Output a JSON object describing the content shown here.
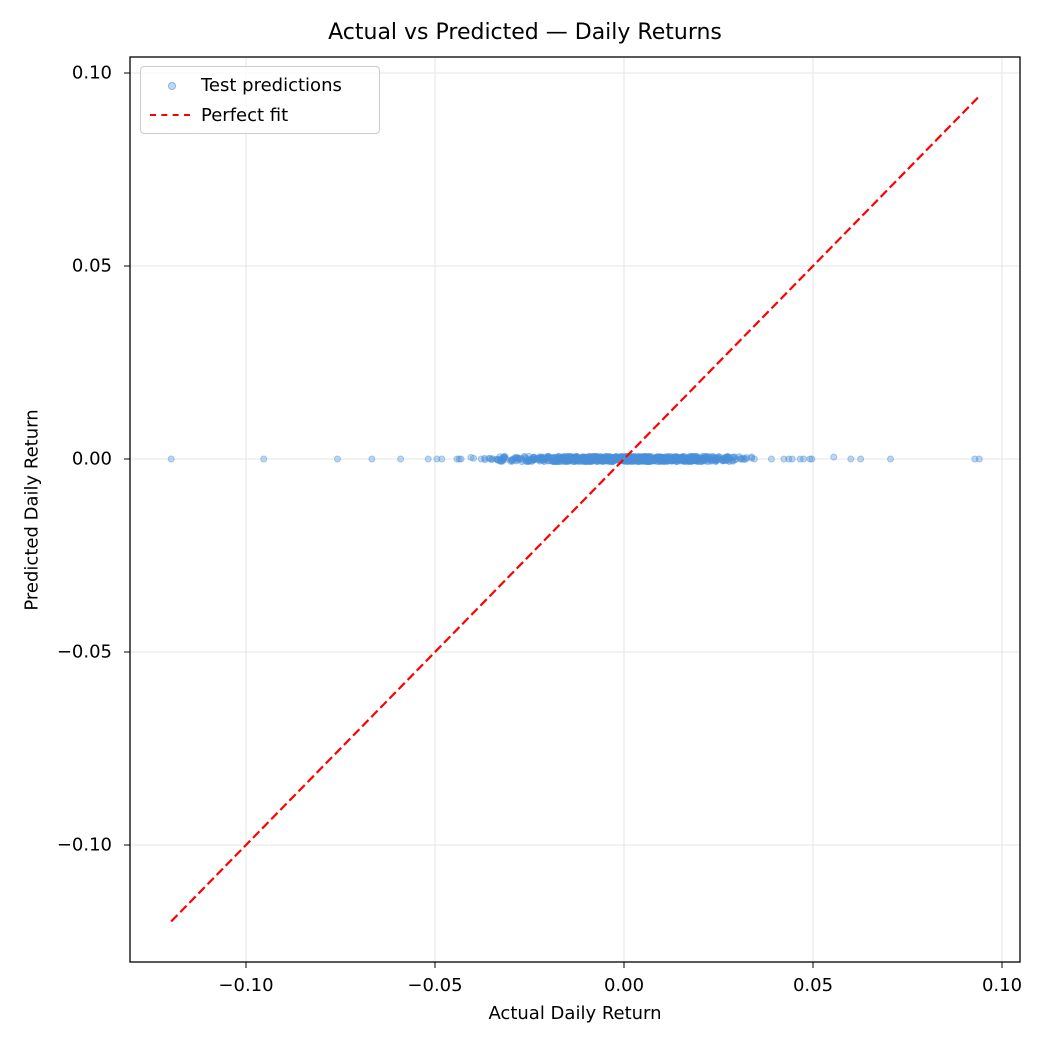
{
  "chart_data": {
    "type": "scatter",
    "title": "Actual vs Predicted — Daily Returns",
    "xlabel": "Actual Daily Return",
    "ylabel": "Predicted Daily Return",
    "xlim": [
      -0.131,
      0.104
    ],
    "ylim": [
      -0.131,
      0.104
    ],
    "xticks": [
      -0.1,
      -0.05,
      0.0,
      0.05,
      0.1
    ],
    "xtick_labels": [
      "−0.10",
      "−0.05",
      "0.00",
      "0.05",
      "0.10"
    ],
    "yticks": [
      -0.1,
      -0.05,
      0.0,
      0.05,
      0.1
    ],
    "ytick_labels": [
      "−0.10",
      "−0.05",
      "0.00",
      "0.05",
      "0.10"
    ],
    "grid": true,
    "legend_position": "upper left",
    "series": [
      {
        "name": "Test predictions",
        "kind": "scatter",
        "color": "#4a90d9",
        "alpha": 0.35,
        "outlier_x": [
          -0.1198,
          -0.0953,
          -0.0758,
          -0.0667,
          -0.0591,
          -0.0518,
          -0.0495,
          -0.0482,
          -0.0442,
          -0.0436,
          -0.0431,
          -0.0405,
          -0.0398,
          -0.0378,
          0.0345,
          0.039,
          0.0423,
          0.0436,
          0.0445,
          0.0466,
          0.0475,
          0.0492,
          0.0497,
          0.0555,
          0.06,
          0.0626,
          0.0705,
          0.0928,
          0.094
        ],
        "outlier_y": [
          0.0,
          0.0,
          0.0,
          0.0,
          0.0,
          0.0,
          0.0,
          0.0,
          0.0,
          0.0,
          0.0,
          0.0004,
          0.0002,
          0.0,
          0.0,
          0.0,
          0.0,
          0.0,
          0.0,
          0.0,
          0.0,
          0.0,
          0.0,
          0.0005,
          0.0,
          0.0,
          0.0,
          0.0,
          0.0
        ],
        "dense_band": {
          "x_from": -0.037,
          "x_to": 0.034,
          "y_center": 0.0,
          "y_halfwidth": 0.0007,
          "description": "dense cluster of predictions all near 0.00"
        }
      },
      {
        "name": "Perfect fit",
        "kind": "line",
        "style": "dashed",
        "color": "#ff0000",
        "x": [
          -0.1198,
          0.094
        ],
        "y": [
          -0.1198,
          0.094
        ]
      }
    ]
  },
  "colors": {
    "scatter": "#4a90d9",
    "fit_line": "#ff0000",
    "grid": "#e6e6e6",
    "axes": "#000000"
  }
}
